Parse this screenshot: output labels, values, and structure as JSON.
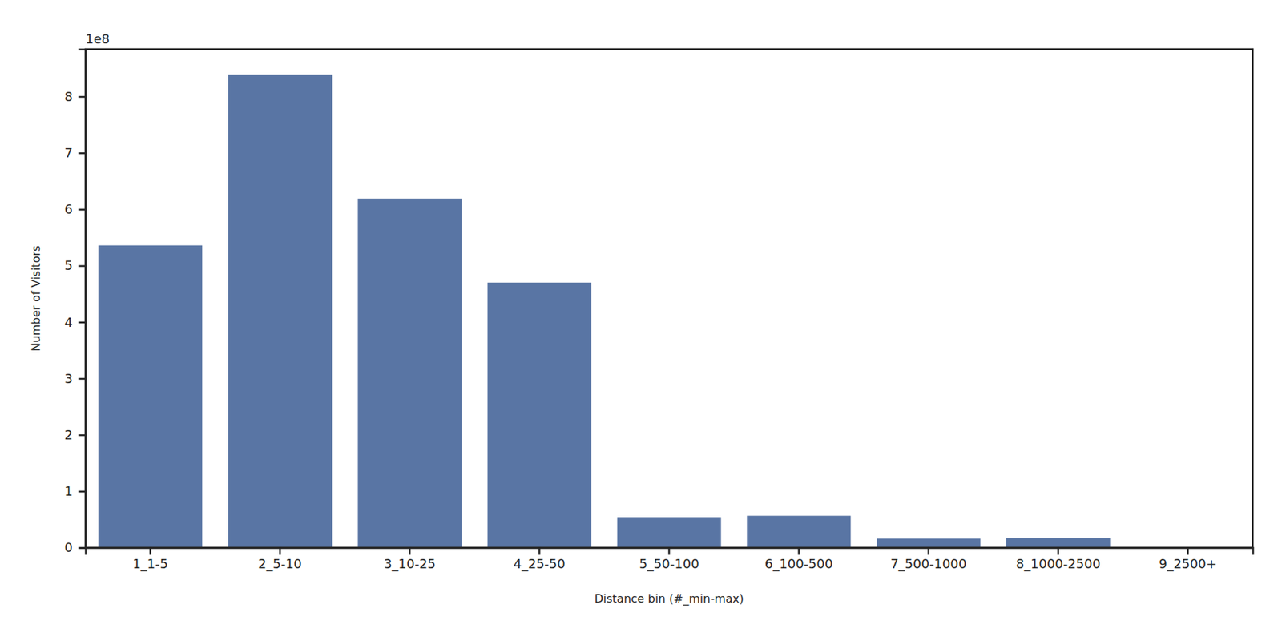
{
  "chart_data": {
    "type": "bar",
    "x_label": "Distance bin (#_min-max)",
    "y_label": "Number of Visitors",
    "y_offset_text": "1e8",
    "categories": [
      "1_1-5",
      "2_5-10",
      "3_10-25",
      "4_25-50",
      "5_50-100",
      "6_100-500",
      "7_500-1000",
      "8_1000-2500",
      "9_2500+"
    ],
    "values": [
      5.36,
      8.39,
      6.19,
      4.7,
      0.54,
      0.565,
      0.16,
      0.17,
      0.003
    ],
    "color": "#5975a4",
    "ylim": [
      0,
      8.84
    ],
    "yticks": [
      0,
      1,
      2,
      3,
      4,
      5,
      6,
      7,
      8
    ],
    "grid": false
  }
}
